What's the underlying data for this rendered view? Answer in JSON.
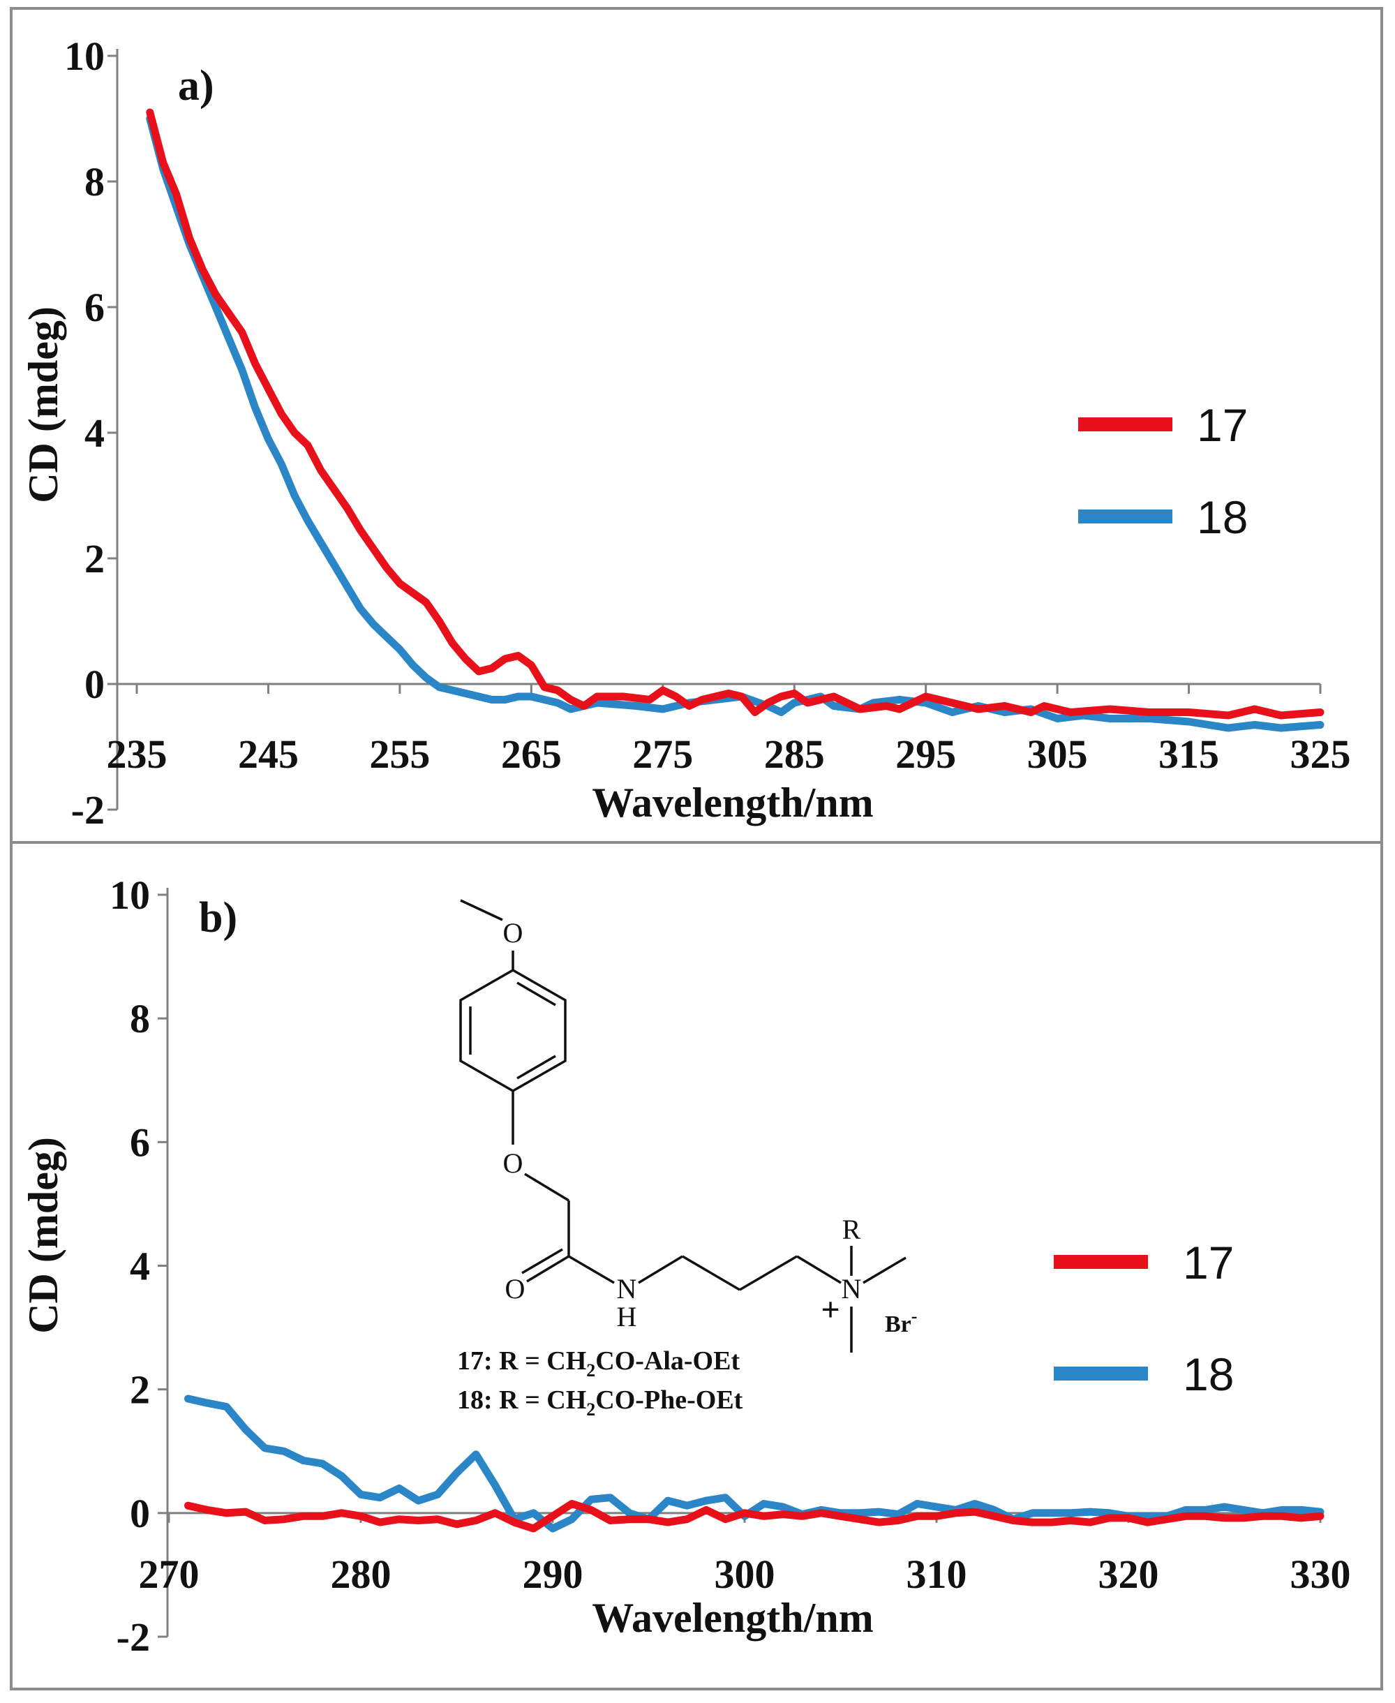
{
  "chart_data": [
    {
      "type": "line",
      "panel_label": "a)",
      "xlabel": "Wavelength/nm",
      "ylabel": "CD (mdeg)",
      "xlim": [
        235,
        325
      ],
      "ylim": [
        -2,
        10
      ],
      "x_ticks": [
        "235",
        "245",
        "255",
        "265",
        "275",
        "285",
        "295",
        "305",
        "315",
        "325"
      ],
      "y_ticks": [
        "-2",
        "0",
        "2",
        "4",
        "6",
        "8",
        "10"
      ],
      "legend": {
        "position": "right",
        "entries": [
          "17",
          "18"
        ]
      },
      "series": [
        {
          "name": "17",
          "color": "#e8101a",
          "points": [
            [
              236.0,
              9.1
            ],
            [
              237.0,
              8.3
            ],
            [
              238.0,
              7.8
            ],
            [
              239.0,
              7.1
            ],
            [
              240.0,
              6.6
            ],
            [
              241.0,
              6.2
            ],
            [
              242.0,
              5.9
            ],
            [
              243.0,
              5.6
            ],
            [
              244.0,
              5.1
            ],
            [
              245.0,
              4.7
            ],
            [
              246.0,
              4.3
            ],
            [
              247.0,
              4.0
            ],
            [
              248.0,
              3.8
            ],
            [
              249.0,
              3.4
            ],
            [
              250.0,
              3.1
            ],
            [
              251.0,
              2.8
            ],
            [
              252.0,
              2.45
            ],
            [
              253.0,
              2.15
            ],
            [
              254.0,
              1.85
            ],
            [
              255.0,
              1.6
            ],
            [
              256.0,
              1.45
            ],
            [
              257.0,
              1.3
            ],
            [
              258.0,
              1.0
            ],
            [
              259.0,
              0.65
            ],
            [
              260.0,
              0.4
            ],
            [
              261.0,
              0.2
            ],
            [
              262.0,
              0.25
            ],
            [
              263.0,
              0.4
            ],
            [
              264.0,
              0.45
            ],
            [
              265.0,
              0.3
            ],
            [
              266.0,
              -0.05
            ],
            [
              267.0,
              -0.1
            ],
            [
              268.0,
              -0.25
            ],
            [
              269.0,
              -0.35
            ],
            [
              270.0,
              -0.2
            ],
            [
              272.0,
              -0.2
            ],
            [
              274.0,
              -0.25
            ],
            [
              275.0,
              -0.1
            ],
            [
              276.0,
              -0.2
            ],
            [
              277.0,
              -0.35
            ],
            [
              278.0,
              -0.25
            ],
            [
              280.0,
              -0.15
            ],
            [
              281.0,
              -0.2
            ],
            [
              282.0,
              -0.45
            ],
            [
              283.0,
              -0.3
            ],
            [
              284.0,
              -0.2
            ],
            [
              285.0,
              -0.15
            ],
            [
              286.0,
              -0.3
            ],
            [
              288.0,
              -0.2
            ],
            [
              290.0,
              -0.4
            ],
            [
              292.0,
              -0.35
            ],
            [
              293.0,
              -0.4
            ],
            [
              295.0,
              -0.2
            ],
            [
              297.0,
              -0.3
            ],
            [
              299.0,
              -0.4
            ],
            [
              301.0,
              -0.35
            ],
            [
              303.0,
              -0.45
            ],
            [
              304.0,
              -0.35
            ],
            [
              306.0,
              -0.45
            ],
            [
              309.0,
              -0.4
            ],
            [
              312.0,
              -0.45
            ],
            [
              315.0,
              -0.45
            ],
            [
              318.0,
              -0.5
            ],
            [
              320.0,
              -0.4
            ],
            [
              322.0,
              -0.5
            ],
            [
              325.0,
              -0.45
            ]
          ]
        },
        {
          "name": "18",
          "color": "#2b86c8",
          "points": [
            [
              236.0,
              9.0
            ],
            [
              237.0,
              8.2
            ],
            [
              238.0,
              7.6
            ],
            [
              239.0,
              7.0
            ],
            [
              240.0,
              6.5
            ],
            [
              241.0,
              6.0
            ],
            [
              242.0,
              5.5
            ],
            [
              243.0,
              5.0
            ],
            [
              244.0,
              4.4
            ],
            [
              245.0,
              3.9
            ],
            [
              246.0,
              3.5
            ],
            [
              247.0,
              3.0
            ],
            [
              248.0,
              2.6
            ],
            [
              249.0,
              2.25
            ],
            [
              250.0,
              1.9
            ],
            [
              251.0,
              1.55
            ],
            [
              252.0,
              1.2
            ],
            [
              253.0,
              0.95
            ],
            [
              254.0,
              0.75
            ],
            [
              255.0,
              0.55
            ],
            [
              256.0,
              0.3
            ],
            [
              257.0,
              0.1
            ],
            [
              258.0,
              -0.05
            ],
            [
              259.0,
              -0.1
            ],
            [
              260.0,
              -0.15
            ],
            [
              261.0,
              -0.2
            ],
            [
              262.0,
              -0.25
            ],
            [
              263.0,
              -0.25
            ],
            [
              264.0,
              -0.2
            ],
            [
              265.0,
              -0.2
            ],
            [
              266.0,
              -0.25
            ],
            [
              267.0,
              -0.3
            ],
            [
              268.0,
              -0.4
            ],
            [
              269.0,
              -0.35
            ],
            [
              270.0,
              -0.3
            ],
            [
              273.0,
              -0.35
            ],
            [
              275.0,
              -0.4
            ],
            [
              277.0,
              -0.3
            ],
            [
              279.0,
              -0.25
            ],
            [
              281.0,
              -0.2
            ],
            [
              283.0,
              -0.35
            ],
            [
              284.0,
              -0.45
            ],
            [
              285.0,
              -0.3
            ],
            [
              287.0,
              -0.2
            ],
            [
              288.0,
              -0.35
            ],
            [
              290.0,
              -0.4
            ],
            [
              291.0,
              -0.3
            ],
            [
              293.0,
              -0.25
            ],
            [
              295.0,
              -0.3
            ],
            [
              297.0,
              -0.45
            ],
            [
              299.0,
              -0.35
            ],
            [
              301.0,
              -0.45
            ],
            [
              303.0,
              -0.4
            ],
            [
              305.0,
              -0.55
            ],
            [
              307.0,
              -0.5
            ],
            [
              309.0,
              -0.55
            ],
            [
              312.0,
              -0.55
            ],
            [
              315.0,
              -0.6
            ],
            [
              318.0,
              -0.7
            ],
            [
              320.0,
              -0.65
            ],
            [
              322.0,
              -0.7
            ],
            [
              325.0,
              -0.65
            ]
          ]
        }
      ]
    },
    {
      "type": "line",
      "panel_label": "b)",
      "xlabel": "Wavelength/nm",
      "ylabel": "CD (mdeg)",
      "xlim": [
        270,
        330
      ],
      "ylim": [
        -2,
        10
      ],
      "x_ticks": [
        "270",
        "280",
        "290",
        "300",
        "310",
        "320",
        "330"
      ],
      "y_ticks": [
        "-2",
        "0",
        "2",
        "4",
        "6",
        "8",
        "10"
      ],
      "legend": {
        "position": "right",
        "entries": [
          "17",
          "18"
        ]
      },
      "series": [
        {
          "name": "17",
          "color": "#e8101a",
          "points": [
            [
              271.0,
              0.12
            ],
            [
              272.0,
              0.05
            ],
            [
              273.0,
              0.0
            ],
            [
              274.0,
              0.02
            ],
            [
              275.0,
              -0.12
            ],
            [
              276.0,
              -0.1
            ],
            [
              277.0,
              -0.05
            ],
            [
              278.0,
              -0.05
            ],
            [
              279.0,
              0.0
            ],
            [
              280.0,
              -0.05
            ],
            [
              281.0,
              -0.15
            ],
            [
              282.0,
              -0.1
            ],
            [
              283.0,
              -0.12
            ],
            [
              284.0,
              -0.1
            ],
            [
              285.0,
              -0.18
            ],
            [
              286.0,
              -0.12
            ],
            [
              287.0,
              0.0
            ],
            [
              288.0,
              -0.15
            ],
            [
              289.0,
              -0.25
            ],
            [
              290.0,
              -0.05
            ],
            [
              291.0,
              0.15
            ],
            [
              292.0,
              0.05
            ],
            [
              293.0,
              -0.12
            ],
            [
              294.0,
              -0.1
            ],
            [
              295.0,
              -0.1
            ],
            [
              296.0,
              -0.15
            ],
            [
              297.0,
              -0.1
            ],
            [
              298.0,
              0.05
            ],
            [
              299.0,
              -0.1
            ],
            [
              300.0,
              0.0
            ],
            [
              301.0,
              -0.05
            ],
            [
              302.0,
              -0.02
            ],
            [
              303.0,
              -0.05
            ],
            [
              304.0,
              0.0
            ],
            [
              305.0,
              -0.05
            ],
            [
              306.0,
              -0.1
            ],
            [
              307.0,
              -0.15
            ],
            [
              308.0,
              -0.12
            ],
            [
              309.0,
              -0.05
            ],
            [
              310.0,
              -0.05
            ],
            [
              311.0,
              0.0
            ],
            [
              312.0,
              0.02
            ],
            [
              313.0,
              -0.05
            ],
            [
              314.0,
              -0.12
            ],
            [
              315.0,
              -0.15
            ],
            [
              316.0,
              -0.15
            ],
            [
              317.0,
              -0.12
            ],
            [
              318.0,
              -0.15
            ],
            [
              319.0,
              -0.08
            ],
            [
              320.0,
              -0.08
            ],
            [
              321.0,
              -0.15
            ],
            [
              322.0,
              -0.1
            ],
            [
              323.0,
              -0.05
            ],
            [
              324.0,
              -0.05
            ],
            [
              325.0,
              -0.08
            ],
            [
              326.0,
              -0.08
            ],
            [
              327.0,
              -0.05
            ],
            [
              328.0,
              -0.05
            ],
            [
              329.0,
              -0.08
            ],
            [
              330.0,
              -0.05
            ]
          ]
        },
        {
          "name": "18",
          "color": "#2b86c8",
          "points": [
            [
              271.0,
              1.85
            ],
            [
              272.0,
              1.78
            ],
            [
              273.0,
              1.72
            ],
            [
              274.0,
              1.35
            ],
            [
              275.0,
              1.05
            ],
            [
              276.0,
              1.0
            ],
            [
              277.0,
              0.85
            ],
            [
              278.0,
              0.8
            ],
            [
              279.0,
              0.6
            ],
            [
              280.0,
              0.3
            ],
            [
              281.0,
              0.25
            ],
            [
              282.0,
              0.4
            ],
            [
              283.0,
              0.2
            ],
            [
              284.0,
              0.3
            ],
            [
              285.0,
              0.65
            ],
            [
              286.0,
              0.95
            ],
            [
              287.0,
              0.45
            ],
            [
              288.0,
              -0.1
            ],
            [
              289.0,
              0.0
            ],
            [
              290.0,
              -0.25
            ],
            [
              291.0,
              -0.1
            ],
            [
              292.0,
              0.22
            ],
            [
              293.0,
              0.25
            ],
            [
              294.0,
              0.0
            ],
            [
              295.0,
              -0.1
            ],
            [
              296.0,
              0.2
            ],
            [
              297.0,
              0.12
            ],
            [
              298.0,
              0.2
            ],
            [
              299.0,
              0.25
            ],
            [
              300.0,
              -0.05
            ],
            [
              301.0,
              0.15
            ],
            [
              302.0,
              0.1
            ],
            [
              303.0,
              -0.02
            ],
            [
              304.0,
              0.05
            ],
            [
              305.0,
              0.0
            ],
            [
              306.0,
              0.0
            ],
            [
              307.0,
              0.02
            ],
            [
              308.0,
              -0.02
            ],
            [
              309.0,
              0.15
            ],
            [
              310.0,
              0.1
            ],
            [
              311.0,
              0.05
            ],
            [
              312.0,
              0.15
            ],
            [
              313.0,
              0.05
            ],
            [
              314.0,
              -0.1
            ],
            [
              315.0,
              0.0
            ],
            [
              316.0,
              0.0
            ],
            [
              317.0,
              0.0
            ],
            [
              318.0,
              0.02
            ],
            [
              319.0,
              0.0
            ],
            [
              320.0,
              -0.05
            ],
            [
              321.0,
              -0.05
            ],
            [
              322.0,
              -0.05
            ],
            [
              323.0,
              0.05
            ],
            [
              324.0,
              0.05
            ],
            [
              325.0,
              0.1
            ],
            [
              326.0,
              0.05
            ],
            [
              327.0,
              0.0
            ],
            [
              328.0,
              0.05
            ],
            [
              329.0,
              0.05
            ],
            [
              330.0,
              0.02
            ]
          ]
        }
      ]
    }
  ],
  "structure": {
    "atoms": {
      "methoxy_o": "O",
      "ether_o": "O",
      "carbonyl_o": "O",
      "amide_n": "N",
      "amide_h": "H",
      "quaternary_n": "N",
      "r_group": "R",
      "plus": "+",
      "counterion": "Br",
      "counterion_charge": "-"
    },
    "captions": [
      {
        "id": "17",
        "prefix": "17: R = CH",
        "sub": "2",
        "suffix": "CO-Ala-OEt"
      },
      {
        "id": "18",
        "prefix": "18: R = CH",
        "sub": "2",
        "suffix": "CO-Phe-OEt"
      }
    ]
  }
}
